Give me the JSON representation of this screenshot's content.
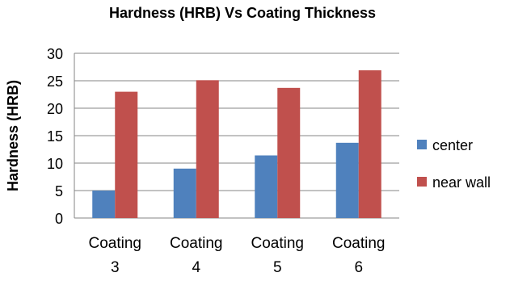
{
  "chart_data": {
    "type": "bar",
    "title": "Hardness (HRB) Vs Coating Thickness",
    "xlabel": "",
    "ylabel": "Hardness (HRB)",
    "categories": [
      [
        "Coating",
        "3"
      ],
      [
        "Coating",
        "4"
      ],
      [
        "Coating",
        "5"
      ],
      [
        "Coating",
        "6"
      ]
    ],
    "series": [
      {
        "name": "center",
        "color": "#4f81bd",
        "values": [
          5,
          9,
          11.4,
          13.7
        ]
      },
      {
        "name": "near wall",
        "color": "#c0504d",
        "values": [
          23,
          25.1,
          23.7,
          26.9
        ]
      }
    ],
    "ylim": [
      0,
      30
    ],
    "yticks": [
      0,
      5,
      10,
      15,
      20,
      25,
      30
    ],
    "grid": true,
    "legend_position": "right"
  }
}
